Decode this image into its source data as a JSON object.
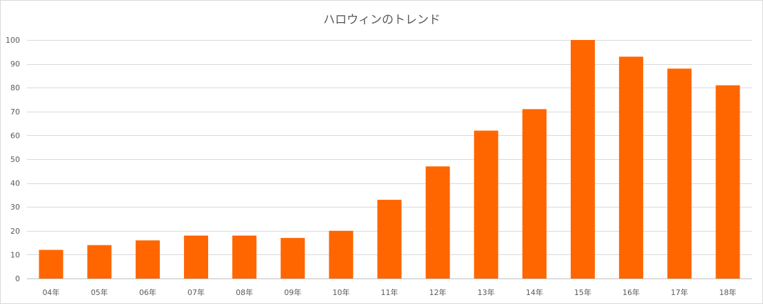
{
  "chart_data": {
    "type": "bar",
    "title": "ハロウィンのトレンド",
    "categories": [
      "04年",
      "05年",
      "06年",
      "07年",
      "08年",
      "09年",
      "10年",
      "11年",
      "12年",
      "13年",
      "14年",
      "15年",
      "16年",
      "17年",
      "18年"
    ],
    "series": [
      {
        "values": [
          12,
          14,
          16,
          18,
          18,
          17,
          20,
          33,
          47,
          62,
          71,
          100,
          93,
          88,
          81
        ],
        "color": "#ff6600"
      }
    ],
    "ylim": [
      0,
      100
    ],
    "yticks": [
      0,
      10,
      20,
      30,
      40,
      50,
      60,
      70,
      80,
      90,
      100
    ],
    "grid": true,
    "legend": "none"
  }
}
